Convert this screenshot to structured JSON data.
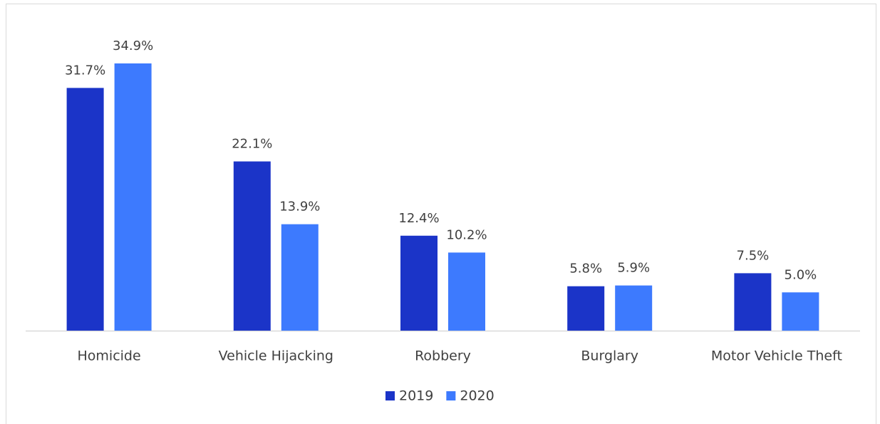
{
  "chart_data": {
    "type": "bar",
    "categories": [
      "Homicide",
      "Vehicle Hijacking",
      "Robbery",
      "Burglary",
      "Motor Vehicle Theft"
    ],
    "series": [
      {
        "name": "2019",
        "color": "#1b34c8",
        "values": [
          31.7,
          22.1,
          12.4,
          5.8,
          7.5
        ],
        "value_labels": [
          "31.7%",
          "22.1%",
          "12.4%",
          "5.8%",
          "7.5%"
        ]
      },
      {
        "name": "2020",
        "color": "#3d7afe",
        "values": [
          34.9,
          13.9,
          10.2,
          5.9,
          5.0
        ],
        "value_labels": [
          "34.9%",
          "13.9%",
          "10.2%",
          "5.9%",
          "5.0%"
        ]
      }
    ],
    "legend": "bottom"
  }
}
